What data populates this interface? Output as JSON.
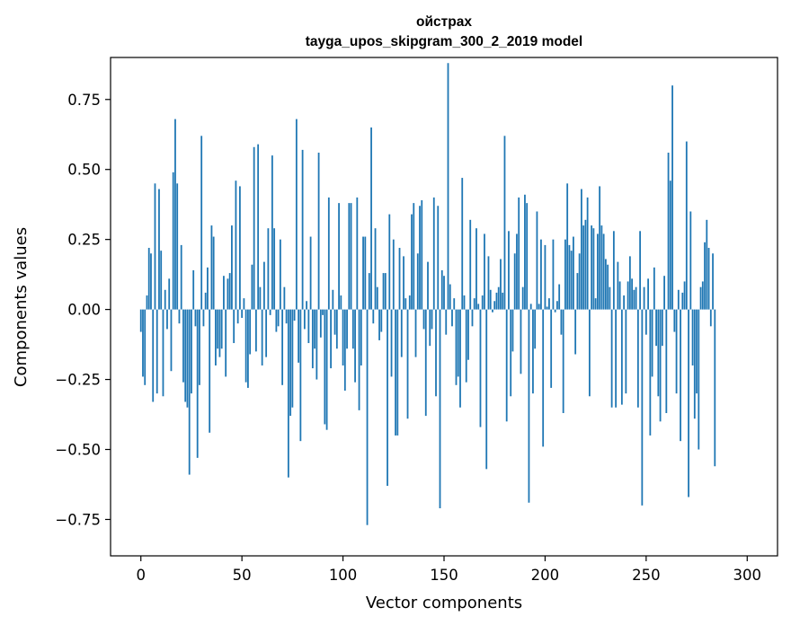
{
  "chart_data": {
    "type": "bar",
    "title": "ойстрах",
    "subtitle": "tayga_upos_skipgram_300_2_2019 model",
    "xlabel": "Vector components",
    "ylabel": "Components values",
    "xlim": [
      -15,
      315
    ],
    "ylim": [
      -0.88,
      0.9
    ],
    "xticks": [
      0,
      50,
      100,
      150,
      200,
      250,
      300
    ],
    "xtick_labels": [
      "0",
      "50",
      "100",
      "150",
      "200",
      "250",
      "300"
    ],
    "yticks": [
      -0.75,
      -0.5,
      -0.25,
      0,
      0.25,
      0.5,
      0.75
    ],
    "ytick_labels": [
      "−0.75",
      "−0.50",
      "−0.25",
      "0.00",
      "0.25",
      "0.50",
      "0.75"
    ],
    "grid": false,
    "bar_color": "#1f77b4",
    "values": [
      -0.08,
      -0.24,
      -0.27,
      0.05,
      0.22,
      0.2,
      -0.33,
      0.45,
      -0.3,
      0.43,
      0.21,
      -0.31,
      0.07,
      -0.07,
      0.11,
      -0.22,
      0.49,
      0.68,
      0.45,
      -0.05,
      0.23,
      -0.26,
      -0.33,
      -0.35,
      -0.59,
      -0.3,
      0.14,
      -0.06,
      -0.53,
      -0.27,
      0.62,
      -0.06,
      0.06,
      0.15,
      -0.44,
      0.3,
      0.26,
      -0.2,
      -0.14,
      -0.17,
      -0.14,
      0.12,
      -0.24,
      0.11,
      0.13,
      0.3,
      -0.12,
      0.46,
      -0.05,
      0.44,
      -0.03,
      0.04,
      -0.26,
      -0.28,
      -0.16,
      0.16,
      0.58,
      -0.15,
      0.59,
      0.08,
      -0.2,
      0.17,
      -0.17,
      0.29,
      -0.02,
      0.55,
      0.29,
      -0.08,
      -0.06,
      0.25,
      -0.27,
      0.08,
      -0.05,
      -0.6,
      -0.38,
      -0.35,
      -0.04,
      0.68,
      -0.19,
      -0.47,
      0.57,
      -0.07,
      0.03,
      -0.12,
      0.26,
      -0.21,
      -0.14,
      -0.25,
      0.56,
      -0.1,
      -0.02,
      -0.41,
      -0.43,
      0.4,
      -0.21,
      0.07,
      -0.09,
      -0.14,
      0.38,
      0.05,
      -0.2,
      -0.29,
      -0.14,
      0.38,
      0.38,
      -0.14,
      -0.26,
      0.4,
      -0.36,
      -0.2,
      0.26,
      0.26,
      -0.77,
      0.13,
      0.65,
      -0.05,
      0.29,
      0.08,
      -0.11,
      -0.08,
      0.13,
      0.13,
      -0.63,
      0.34,
      -0.24,
      0.25,
      -0.45,
      -0.45,
      0.22,
      -0.17,
      0.19,
      0.04,
      -0.39,
      0.05,
      0.34,
      0.38,
      -0.17,
      0.2,
      0.37,
      0.39,
      -0.07,
      -0.38,
      0.17,
      -0.13,
      -0.07,
      0.4,
      -0.31,
      0.37,
      -0.71,
      0.14,
      0.12,
      -0.09,
      0.88,
      0.09,
      -0.06,
      0.04,
      -0.27,
      -0.24,
      -0.35,
      0.47,
      0.05,
      -0.26,
      -0.18,
      0.32,
      -0.06,
      0.04,
      0.29,
      0.02,
      -0.42,
      0.05,
      0.27,
      -0.57,
      0.19,
      0.07,
      -0.01,
      0.03,
      0.06,
      0.08,
      0.18,
      0.06,
      0.62,
      -0.4,
      0.28,
      -0.31,
      -0.15,
      0.2,
      0.27,
      0.4,
      -0.23,
      0.08,
      0.41,
      0.38,
      -0.69,
      0.02,
      -0.3,
      -0.14,
      0.35,
      0.02,
      0.25,
      -0.49,
      0.23,
      0.01,
      0.04,
      -0.28,
      0.25,
      -0.01,
      0.03,
      0.09,
      -0.09,
      -0.37,
      0.25,
      0.45,
      0.23,
      0.21,
      0.26,
      -0.16,
      0.13,
      0.2,
      0.43,
      0.3,
      0.32,
      0.4,
      -0.31,
      0.3,
      0.29,
      0.04,
      0.27,
      0.44,
      0.3,
      0.27,
      0.18,
      0.16,
      0.08,
      -0.35,
      0.28,
      -0.35,
      0.17,
      0.1,
      -0.34,
      0.05,
      -0.3,
      0.1,
      0.19,
      0.11,
      0.07,
      0.08,
      -0.35,
      0.28,
      -0.7,
      0.08,
      -0.09,
      0.11,
      -0.45,
      -0.24,
      0.15,
      -0.13,
      -0.31,
      -0.4,
      -0.13,
      0.12,
      -0.37,
      0.56,
      0.46,
      0.8,
      -0.08,
      -0.3,
      0.07,
      -0.47,
      0.06,
      0.1,
      0.6,
      -0.67,
      0.35,
      -0.2,
      -0.39,
      -0.3,
      -0.5,
      0.08,
      0.1,
      0.24,
      0.32,
      0.22,
      -0.06,
      0.2,
      -0.56
    ]
  }
}
